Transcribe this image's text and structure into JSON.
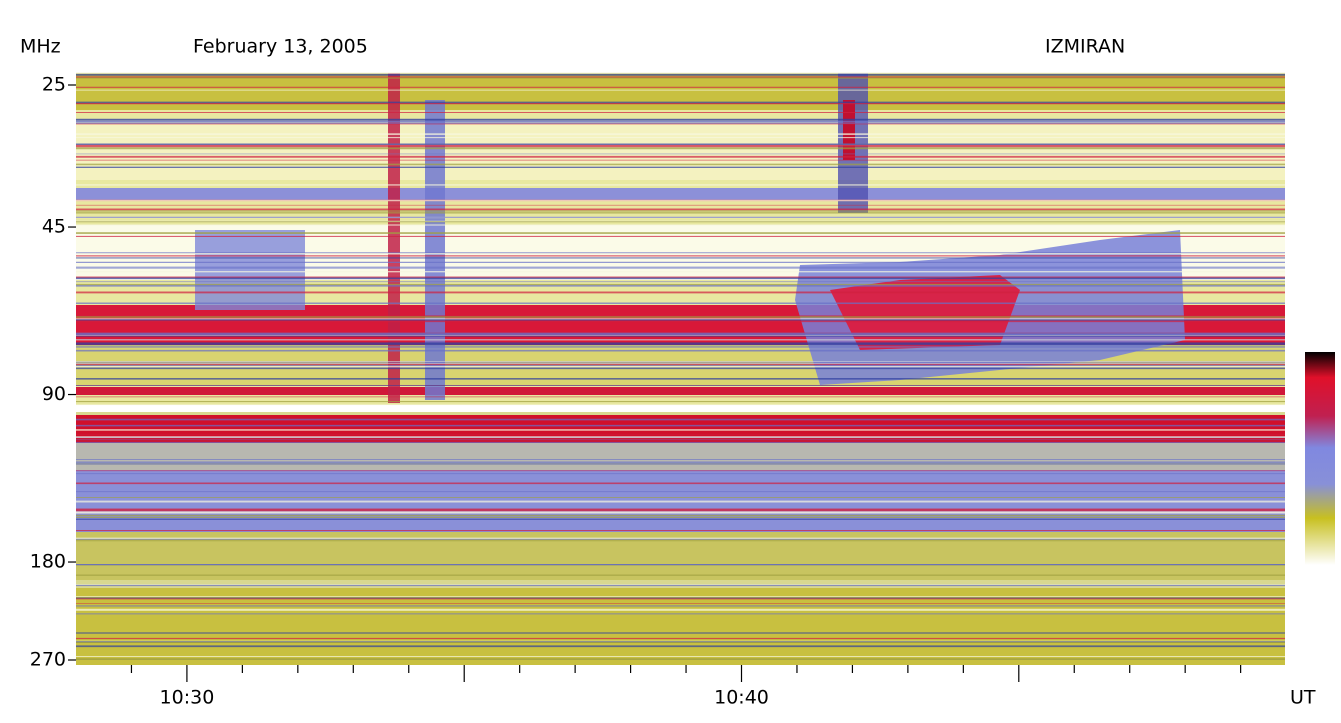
{
  "chart_data": {
    "type": "spectrogram",
    "title": "February 13, 2005",
    "annotation": "IZMIRAN",
    "y_label": "MHz",
    "x_label": "UT",
    "log_y": true,
    "ylim": [
      25,
      270
    ],
    "yticks": [
      25,
      45,
      90,
      180,
      270
    ],
    "xlim": [
      628,
      649.8
    ],
    "xticks": [
      {
        "value": 630,
        "label": "10:30"
      },
      {
        "value": 640,
        "label": "10:40"
      }
    ],
    "xminor_ticks": [
      629,
      631,
      632,
      633,
      634,
      635,
      636,
      637,
      638,
      639,
      641,
      642,
      643,
      644,
      645,
      646,
      647,
      648,
      649
    ]
  }
}
